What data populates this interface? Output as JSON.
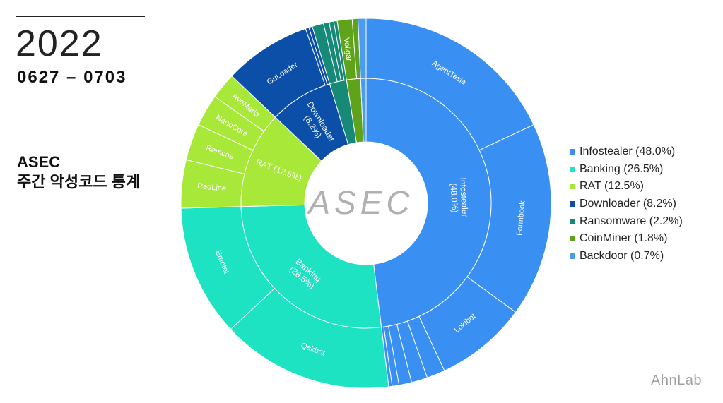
{
  "header": {
    "year": "2022",
    "date_range": "0627 – 0703",
    "title_line1": "ASEC",
    "title_line2": "주간 악성코드 통계"
  },
  "brand": "AhnLab",
  "chart_data": {
    "type": "sunburst",
    "center_label": "ASEC",
    "legend_position": "right",
    "categories": [
      {
        "name": "Infostealer",
        "label": "Infostealer (48.0%)",
        "value": 48.0,
        "color": "#3a8ff2",
        "children": [
          {
            "name": "AgentTesla",
            "value": 18.0
          },
          {
            "name": "Formbook",
            "value": 17.0
          },
          {
            "name": "Lokibot",
            "value": 8.0
          },
          {
            "name": "",
            "value": 1.6
          },
          {
            "name": "",
            "value": 1.4
          },
          {
            "name": "",
            "value": 1.1
          },
          {
            "name": "",
            "value": 0.6
          },
          {
            "name": "",
            "value": 0.3
          }
        ]
      },
      {
        "name": "Banking",
        "label": "Banking (26.5%)",
        "value": 26.5,
        "color": "#1de3c3",
        "children": [
          {
            "name": "Qakbot",
            "value": 15.0
          },
          {
            "name": "Emotet",
            "value": 11.5
          }
        ]
      },
      {
        "name": "RAT",
        "label": "RAT (12.5%)",
        "value": 12.5,
        "color": "#a8e838",
        "children": [
          {
            "name": "RedLine",
            "value": 4.2
          },
          {
            "name": "Remcos",
            "value": 3.2
          },
          {
            "name": "NanoCore",
            "value": 2.8
          },
          {
            "name": "AveMaria",
            "value": 2.3
          }
        ]
      },
      {
        "name": "Downloader",
        "label": "Downloader (8.2%)",
        "value": 8.2,
        "color": "#0b4fa8",
        "children": [
          {
            "name": "GuLoader",
            "value": 7.6
          },
          {
            "name": "",
            "value": 0.3
          },
          {
            "name": "",
            "value": 0.3
          }
        ]
      },
      {
        "name": "Ransomware",
        "label": "Ransomware (2.2%)",
        "value": 2.2,
        "color": "#168a76",
        "children": [
          {
            "name": "",
            "value": 1.0
          },
          {
            "name": "",
            "value": 0.5
          },
          {
            "name": "",
            "value": 0.4
          },
          {
            "name": "",
            "value": 0.3
          }
        ]
      },
      {
        "name": "CoinMiner",
        "label": "CoinMiner (1.8%)",
        "value": 1.8,
        "color": "#5fa31b",
        "children": [
          {
            "name": "Vollgar",
            "value": 1.3
          },
          {
            "name": "",
            "value": 0.5
          }
        ]
      },
      {
        "name": "Backdoor",
        "label": "Backdoor (0.7%)",
        "value": 0.7,
        "color": "#4b9bf0",
        "children": [
          {
            "name": "",
            "value": 0.7
          }
        ]
      }
    ],
    "inner_labels": {
      "Infostealer": [
        "Infostealer",
        "(48.0%)"
      ],
      "Banking": [
        "Banking",
        "(26.5%)"
      ],
      "RAT": [
        "RAT (12.5%)"
      ],
      "Downloader": [
        "Downloader",
        "(8.2%)"
      ]
    }
  }
}
